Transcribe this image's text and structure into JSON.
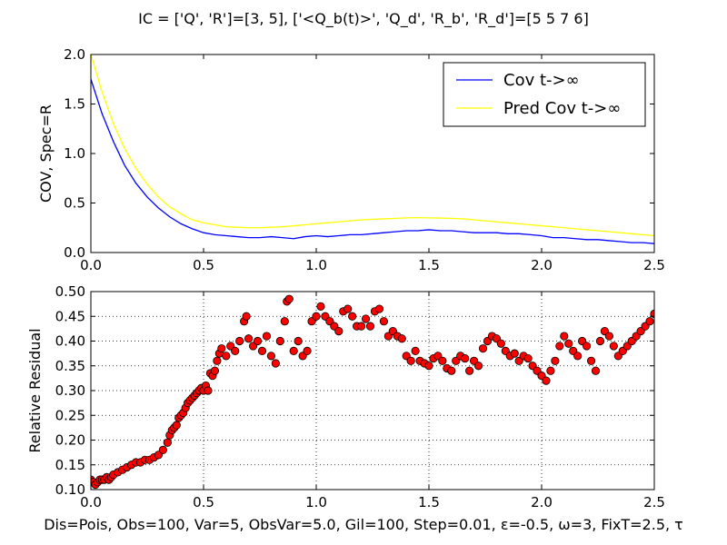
{
  "figure": {
    "title": "IC = ['Q', 'R']=[3, 5], ['<Q_b(t)>', 'Q_d', 'R_b', 'R_d']=[5 5 7 6]",
    "bottom_label": "Dis=Pois, Obs=100, Var=5, ObsVar=5.0, Gil=100, Step=0.01, ε=-0.5, ω=3, FixT=2.5, τ"
  },
  "chart_data": [
    {
      "type": "line",
      "title": "",
      "xlabel": "",
      "ylabel": "COV, Spec=R",
      "xlim": [
        0.0,
        2.5
      ],
      "ylim": [
        0.0,
        2.0
      ],
      "xticks": [
        "0.0",
        "0.5",
        "1.0",
        "1.5",
        "2.0",
        "2.5"
      ],
      "yticks": [
        "0.0",
        "0.5",
        "1.0",
        "1.5",
        "2.0"
      ],
      "grid": false,
      "legend_position": "top-right",
      "series": [
        {
          "name": "Cov t->∞",
          "color": "#0000ff",
          "x": [
            0.0,
            0.05,
            0.1,
            0.15,
            0.2,
            0.25,
            0.3,
            0.35,
            0.4,
            0.45,
            0.5,
            0.55,
            0.6,
            0.65,
            0.7,
            0.75,
            0.8,
            0.85,
            0.9,
            0.95,
            1.0,
            1.05,
            1.1,
            1.15,
            1.2,
            1.25,
            1.3,
            1.35,
            1.4,
            1.45,
            1.5,
            1.55,
            1.6,
            1.65,
            1.7,
            1.75,
            1.8,
            1.85,
            1.9,
            1.95,
            2.0,
            2.05,
            2.1,
            2.15,
            2.2,
            2.25,
            2.3,
            2.35,
            2.4,
            2.45,
            2.5
          ],
          "y": [
            1.75,
            1.4,
            1.12,
            0.88,
            0.7,
            0.56,
            0.45,
            0.36,
            0.29,
            0.24,
            0.2,
            0.18,
            0.17,
            0.16,
            0.15,
            0.15,
            0.16,
            0.15,
            0.14,
            0.16,
            0.17,
            0.16,
            0.17,
            0.18,
            0.18,
            0.19,
            0.2,
            0.21,
            0.22,
            0.22,
            0.23,
            0.22,
            0.22,
            0.21,
            0.2,
            0.2,
            0.2,
            0.19,
            0.19,
            0.18,
            0.17,
            0.15,
            0.15,
            0.14,
            0.13,
            0.13,
            0.12,
            0.11,
            0.1,
            0.1,
            0.09
          ]
        },
        {
          "name": "Pred Cov t->∞",
          "color": "#ffff00",
          "x": [
            0.0,
            0.05,
            0.1,
            0.15,
            0.2,
            0.25,
            0.3,
            0.35,
            0.4,
            0.45,
            0.5,
            0.55,
            0.6,
            0.65,
            0.7,
            0.75,
            0.8,
            0.85,
            0.9,
            0.95,
            1.0,
            1.05,
            1.1,
            1.15,
            1.2,
            1.25,
            1.3,
            1.35,
            1.4,
            1.45,
            1.5,
            1.55,
            1.6,
            1.65,
            1.7,
            1.75,
            1.8,
            1.85,
            1.9,
            1.95,
            2.0,
            2.05,
            2.1,
            2.15,
            2.2,
            2.25,
            2.3,
            2.35,
            2.4,
            2.45,
            2.5
          ],
          "y": [
            2.0,
            1.62,
            1.3,
            1.05,
            0.85,
            0.69,
            0.56,
            0.46,
            0.39,
            0.33,
            0.3,
            0.28,
            0.26,
            0.255,
            0.25,
            0.25,
            0.255,
            0.26,
            0.27,
            0.28,
            0.29,
            0.3,
            0.31,
            0.32,
            0.33,
            0.335,
            0.34,
            0.345,
            0.35,
            0.352,
            0.35,
            0.348,
            0.345,
            0.34,
            0.33,
            0.32,
            0.31,
            0.3,
            0.29,
            0.28,
            0.27,
            0.26,
            0.25,
            0.24,
            0.23,
            0.22,
            0.21,
            0.2,
            0.19,
            0.18,
            0.17
          ]
        }
      ]
    },
    {
      "type": "scatter",
      "title": "",
      "xlabel": "",
      "ylabel": "Relative Residual",
      "xlim": [
        0.0,
        2.5
      ],
      "ylim": [
        0.1,
        0.5
      ],
      "xticks": [
        "0.0",
        "0.5",
        "1.0",
        "1.5",
        "2.0",
        "2.5"
      ],
      "yticks": [
        "0.10",
        "0.15",
        "0.20",
        "0.25",
        "0.30",
        "0.35",
        "0.40",
        "0.45",
        "0.50"
      ],
      "grid": true,
      "marker_color": "#ff0000",
      "x": [
        0.0,
        0.01,
        0.02,
        0.03,
        0.04,
        0.05,
        0.06,
        0.07,
        0.08,
        0.09,
        0.1,
        0.12,
        0.14,
        0.16,
        0.18,
        0.2,
        0.22,
        0.24,
        0.26,
        0.28,
        0.3,
        0.32,
        0.34,
        0.35,
        0.36,
        0.37,
        0.38,
        0.39,
        0.4,
        0.41,
        0.42,
        0.43,
        0.44,
        0.45,
        0.46,
        0.47,
        0.48,
        0.49,
        0.5,
        0.51,
        0.52,
        0.53,
        0.54,
        0.55,
        0.56,
        0.57,
        0.58,
        0.6,
        0.62,
        0.64,
        0.66,
        0.68,
        0.69,
        0.7,
        0.72,
        0.74,
        0.76,
        0.78,
        0.8,
        0.82,
        0.84,
        0.86,
        0.87,
        0.88,
        0.9,
        0.92,
        0.94,
        0.96,
        0.98,
        1.0,
        1.02,
        1.04,
        1.06,
        1.08,
        1.1,
        1.12,
        1.14,
        1.16,
        1.18,
        1.2,
        1.22,
        1.24,
        1.26,
        1.28,
        1.3,
        1.32,
        1.34,
        1.36,
        1.38,
        1.4,
        1.42,
        1.44,
        1.46,
        1.48,
        1.5,
        1.52,
        1.54,
        1.56,
        1.58,
        1.6,
        1.62,
        1.64,
        1.66,
        1.68,
        1.7,
        1.72,
        1.74,
        1.76,
        1.78,
        1.8,
        1.82,
        1.84,
        1.86,
        1.88,
        1.9,
        1.92,
        1.94,
        1.96,
        1.98,
        2.0,
        2.02,
        2.04,
        2.06,
        2.08,
        2.1,
        2.12,
        2.14,
        2.16,
        2.18,
        2.2,
        2.22,
        2.24,
        2.26,
        2.28,
        2.3,
        2.32,
        2.34,
        2.36,
        2.38,
        2.4,
        2.42,
        2.44,
        2.46,
        2.48,
        2.5
      ],
      "y": [
        0.12,
        0.115,
        0.11,
        0.115,
        0.12,
        0.12,
        0.12,
        0.125,
        0.12,
        0.125,
        0.13,
        0.135,
        0.14,
        0.145,
        0.15,
        0.155,
        0.155,
        0.16,
        0.16,
        0.165,
        0.17,
        0.18,
        0.195,
        0.21,
        0.22,
        0.225,
        0.23,
        0.245,
        0.25,
        0.255,
        0.265,
        0.275,
        0.28,
        0.285,
        0.29,
        0.295,
        0.3,
        0.305,
        0.3,
        0.31,
        0.3,
        0.335,
        0.33,
        0.34,
        0.36,
        0.375,
        0.385,
        0.37,
        0.39,
        0.38,
        0.4,
        0.44,
        0.45,
        0.405,
        0.39,
        0.4,
        0.38,
        0.41,
        0.37,
        0.355,
        0.4,
        0.44,
        0.48,
        0.485,
        0.38,
        0.4,
        0.37,
        0.38,
        0.44,
        0.45,
        0.47,
        0.45,
        0.44,
        0.43,
        0.42,
        0.46,
        0.465,
        0.45,
        0.43,
        0.43,
        0.445,
        0.43,
        0.46,
        0.465,
        0.44,
        0.41,
        0.42,
        0.41,
        0.405,
        0.37,
        0.36,
        0.38,
        0.36,
        0.355,
        0.35,
        0.365,
        0.37,
        0.36,
        0.345,
        0.34,
        0.36,
        0.37,
        0.365,
        0.34,
        0.36,
        0.35,
        0.385,
        0.4,
        0.41,
        0.405,
        0.395,
        0.38,
        0.37,
        0.375,
        0.36,
        0.37,
        0.365,
        0.35,
        0.34,
        0.33,
        0.32,
        0.34,
        0.36,
        0.39,
        0.41,
        0.395,
        0.38,
        0.37,
        0.4,
        0.39,
        0.36,
        0.34,
        0.4,
        0.42,
        0.41,
        0.39,
        0.37,
        0.38,
        0.39,
        0.4,
        0.41,
        0.42,
        0.43,
        0.44,
        0.455
      ]
    }
  ]
}
